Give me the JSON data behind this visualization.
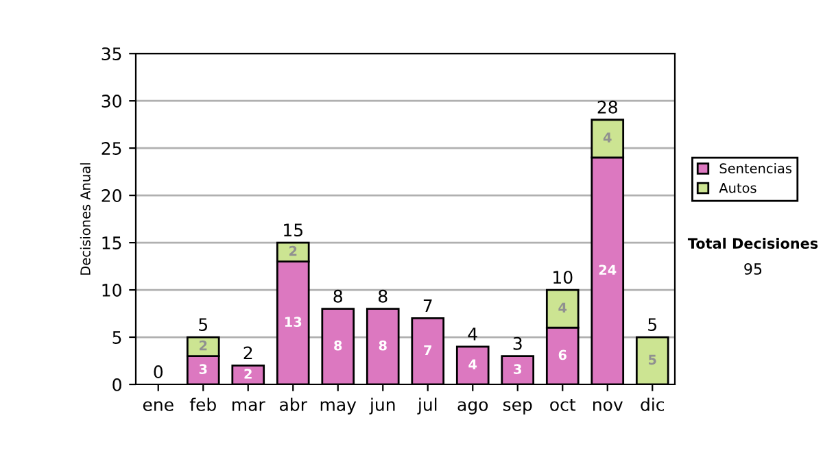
{
  "chart_data": {
    "type": "bar",
    "stacked": true,
    "ylabel": "Decisiones Anual",
    "categories": [
      "ene",
      "feb",
      "mar",
      "abr",
      "may",
      "jun",
      "jul",
      "ago",
      "sep",
      "oct",
      "nov",
      "dic"
    ],
    "series": [
      {
        "name": "Sentencias",
        "color": "#dc78c0",
        "values": [
          0,
          3,
          2,
          13,
          8,
          8,
          7,
          4,
          3,
          6,
          24,
          0
        ],
        "value_labels": [
          null,
          "3",
          "2",
          "13",
          "8",
          "8",
          "7",
          "4",
          "3",
          "6",
          "24",
          null
        ]
      },
      {
        "name": "Autos",
        "color": "#cce492",
        "values": [
          0,
          2,
          0,
          2,
          0,
          0,
          0,
          0,
          0,
          4,
          4,
          5
        ],
        "value_labels": [
          null,
          "2",
          null,
          "2",
          null,
          null,
          null,
          null,
          null,
          "4",
          "4",
          "5"
        ]
      }
    ],
    "totals": [
      "0",
      "5",
      "2",
      "15",
      "8",
      "8",
      "7",
      "4",
      "3",
      "10",
      "28",
      "5"
    ],
    "ylim": [
      0,
      35
    ],
    "yticks": [
      0,
      5,
      10,
      15,
      20,
      25,
      30,
      35
    ],
    "grid": "y",
    "legend": "right",
    "annotations": [
      "Total Decisiones",
      "95"
    ]
  }
}
